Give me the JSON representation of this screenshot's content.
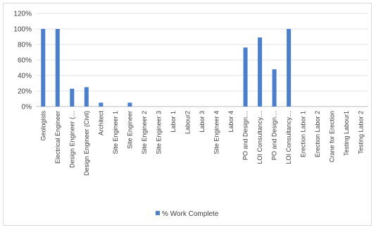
{
  "chart_data": {
    "type": "bar",
    "categories": [
      "Geologists",
      "Electrical Engineer",
      "Design Engineer (…",
      "Design Engineer (Civil)",
      "Architect",
      "Site Engineer 1",
      "Site Engineer",
      "Site Engineer 2",
      "Site Engineer 3",
      "Labor 1",
      "Labour2",
      "Labor 3",
      "Site Engineer 4",
      "Labor 4",
      "PO and Design…",
      "LOI Consultancy…",
      "PO and Design…",
      "LOI Consultancy…",
      "Erection Labor 1",
      "Erection Labor 2",
      "Crane for Erection",
      "Testing Labour1",
      "Testing Labor 2"
    ],
    "series": [
      {
        "name": "% Work Complete",
        "values": [
          100,
          100,
          23,
          25,
          5,
          0,
          5,
          0,
          0,
          0,
          0,
          0,
          0,
          0,
          76,
          89,
          48,
          100,
          0,
          0,
          0,
          0,
          0
        ]
      }
    ],
    "yticks": [
      "0%",
      "20%",
      "40%",
      "60%",
      "80%",
      "100%",
      "120%"
    ],
    "ylim": [
      0,
      120
    ],
    "grid": true,
    "legend_position": "bottom",
    "colors": {
      "bar": "#4a7fd0",
      "grid": "#e3e3e3",
      "axis": "#bfbfbf",
      "text": "#404040"
    }
  }
}
